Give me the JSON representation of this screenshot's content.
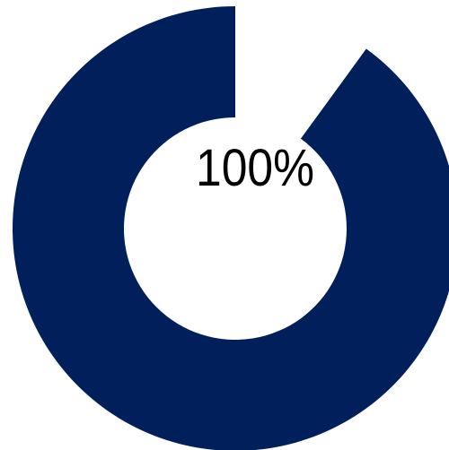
{
  "chart_data": {
    "type": "pie",
    "style": "donut",
    "center_label": "100%",
    "slices": [
      {
        "value": 90,
        "color": "#001f5b"
      },
      {
        "value": 10,
        "color": "#ffffff"
      }
    ],
    "start_angle_deg": 0,
    "direction": "counterclockwise",
    "legend": "none",
    "title": ""
  }
}
